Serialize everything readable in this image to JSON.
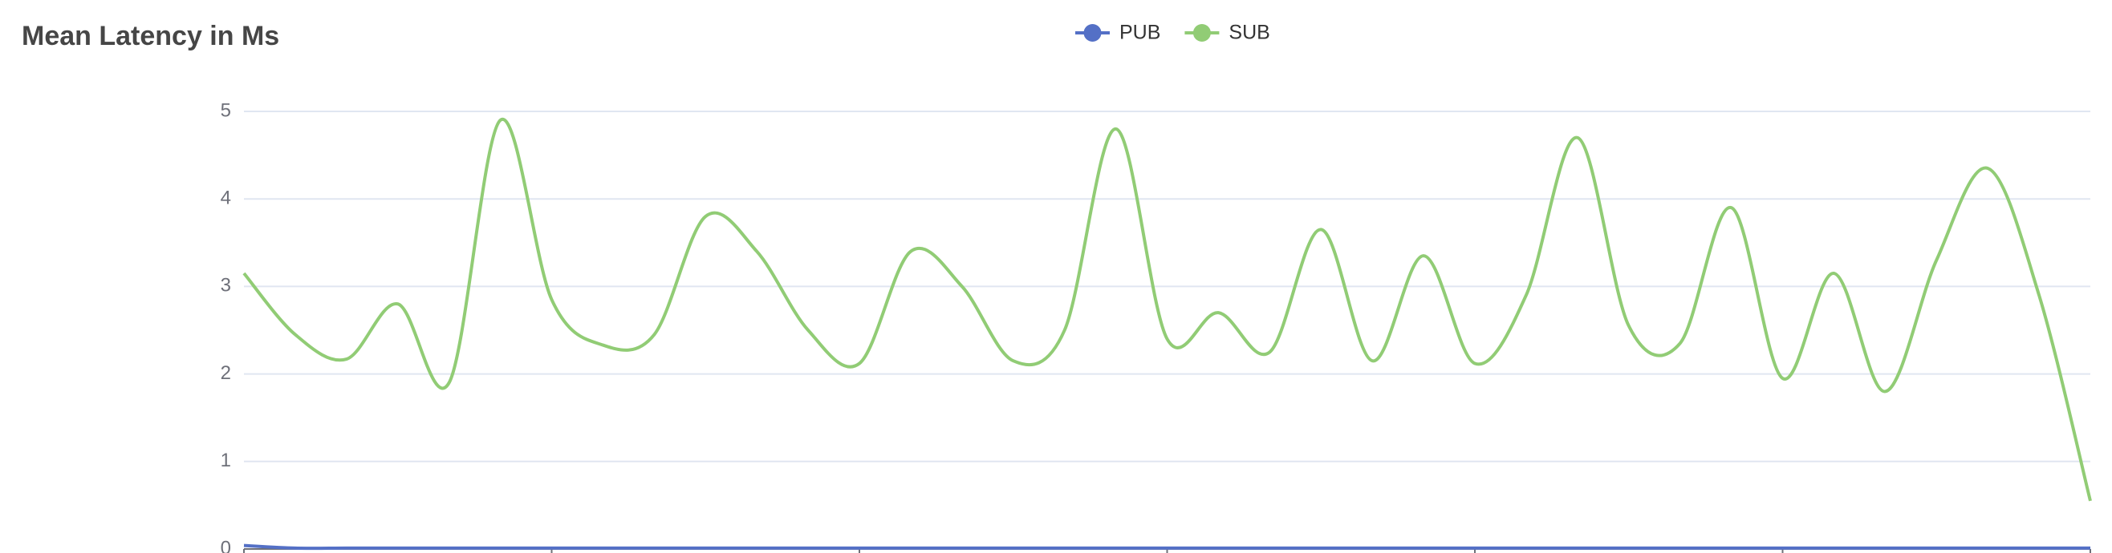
{
  "chart_data": {
    "type": "line",
    "title": "Mean Latency in Ms",
    "categories": [
      null,
      null,
      null,
      null,
      null,
      null,
      null,
      null,
      null,
      null,
      null,
      null,
      null,
      null,
      null,
      null,
      null,
      null,
      null,
      null,
      null,
      null,
      null,
      null,
      null,
      null,
      null,
      null,
      null,
      null,
      null,
      null,
      null,
      null,
      null,
      null,
      null
    ],
    "series": [
      {
        "name": "PUB",
        "color": "#5470c6",
        "values": [
          0.04,
          0.01,
          0.01,
          0.01,
          0.01,
          0.01,
          0.01,
          0.01,
          0.01,
          0.01,
          0.01,
          0.01,
          0.01,
          0.01,
          0.01,
          0.01,
          0.01,
          0.01,
          0.01,
          0.01,
          0.01,
          0.01,
          0.01,
          0.01,
          0.01,
          0.01,
          0.01,
          0.01,
          0.01,
          0.01,
          0.01,
          0.01,
          0.01,
          0.01,
          0.01,
          0.01,
          0.01
        ]
      },
      {
        "name": "SUB",
        "color": "#91cc75",
        "values": [
          3.15,
          2.45,
          2.17,
          2.8,
          1.9,
          4.9,
          2.85,
          2.33,
          2.45,
          3.8,
          3.4,
          2.5,
          2.12,
          3.4,
          3.0,
          2.15,
          2.5,
          4.8,
          2.4,
          2.7,
          2.25,
          3.65,
          2.15,
          3.35,
          2.12,
          2.9,
          4.7,
          2.55,
          2.35,
          3.9,
          1.95,
          3.15,
          1.8,
          3.3,
          4.35,
          2.9,
          0.55
        ]
      }
    ],
    "ylim": [
      0,
      5
    ],
    "yticks": [
      0,
      1,
      2,
      3,
      4,
      5
    ],
    "grid": true,
    "legend": "top",
    "smooth": true
  }
}
